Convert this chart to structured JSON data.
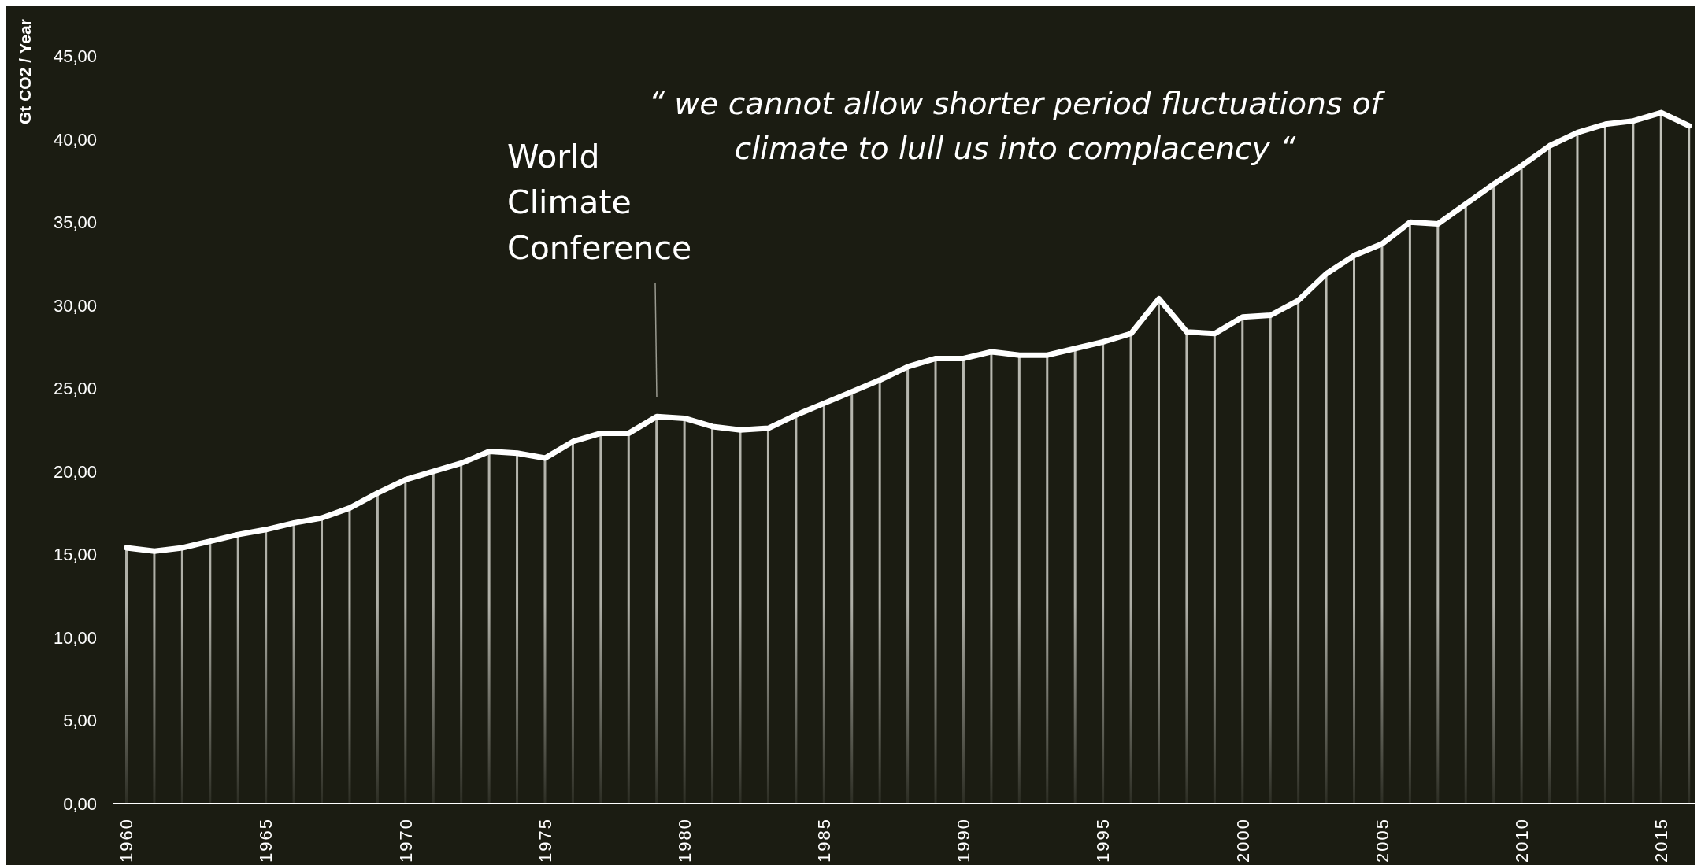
{
  "chart_data": {
    "type": "line",
    "ylabel": "Gt CO2 / Year",
    "x": [
      1960,
      1961,
      1962,
      1963,
      1964,
      1965,
      1966,
      1967,
      1968,
      1969,
      1970,
      1971,
      1972,
      1973,
      1974,
      1975,
      1976,
      1977,
      1978,
      1979,
      1980,
      1981,
      1982,
      1983,
      1984,
      1985,
      1986,
      1987,
      1988,
      1989,
      1990,
      1991,
      1992,
      1993,
      1994,
      1995,
      1996,
      1997,
      1998,
      1999,
      2000,
      2001,
      2002,
      2003,
      2004,
      2005,
      2006,
      2007,
      2008,
      2009,
      2010,
      2011,
      2012,
      2013,
      2014,
      2015,
      2016
    ],
    "series": [
      {
        "type": "bar",
        "color": "#c8c8c0",
        "values": [
          15.4,
          15.2,
          15.4,
          15.8,
          16.2,
          16.5,
          16.9,
          17.2,
          17.8,
          18.7,
          19.5,
          20.0,
          20.5,
          21.2,
          21.1,
          20.8,
          21.8,
          22.3,
          22.3,
          23.3,
          23.2,
          22.7,
          22.5,
          22.6,
          23.4,
          24.1,
          24.8,
          25.5,
          26.3,
          26.8,
          26.8,
          27.2,
          27.0,
          27.0,
          27.4,
          27.8,
          28.3,
          30.4,
          28.4,
          28.3,
          29.3,
          29.4,
          30.3,
          31.9,
          33.0,
          33.7,
          35.0,
          34.9,
          36.1,
          37.3,
          38.4,
          39.6,
          40.4,
          40.9,
          41.1,
          41.6,
          40.8
        ]
      },
      {
        "color": "#ffffff",
        "values": [
          15.4,
          15.2,
          15.4,
          15.8,
          16.2,
          16.5,
          16.9,
          17.2,
          17.8,
          18.7,
          19.5,
          20.0,
          20.5,
          21.2,
          21.1,
          20.8,
          21.8,
          22.3,
          22.3,
          23.3,
          23.2,
          22.7,
          22.5,
          22.6,
          23.4,
          24.1,
          24.8,
          25.5,
          26.3,
          26.8,
          26.8,
          27.2,
          27.0,
          27.0,
          27.4,
          27.8,
          28.3,
          30.4,
          28.4,
          28.3,
          29.3,
          29.4,
          30.3,
          31.9,
          33.0,
          33.7,
          35.0,
          34.9,
          36.1,
          37.3,
          38.4,
          39.6,
          40.4,
          40.9,
          41.1,
          41.6,
          40.8
        ]
      }
    ],
    "xlim": [
      1959.5,
      2016.2
    ],
    "xticks": [
      1960,
      1965,
      1970,
      1975,
      1980,
      1985,
      1990,
      1995,
      2000,
      2005,
      2010,
      2015
    ],
    "ylim": [
      0,
      48
    ],
    "yticks": [
      {
        "value": 0,
        "label": "0,00"
      },
      {
        "value": 5,
        "label": "5,00"
      },
      {
        "value": 10,
        "label": "10,00"
      },
      {
        "value": 15,
        "label": "15,00"
      },
      {
        "value": 20,
        "label": "20,00"
      },
      {
        "value": 25,
        "label": "25,00"
      },
      {
        "value": 30,
        "label": "30,00"
      },
      {
        "value": 35,
        "label": "35,00"
      },
      {
        "value": 40,
        "label": "40,00"
      },
      {
        "value": 45,
        "label": "45,00"
      }
    ],
    "annotations": [
      "World Climate Conference",
      "“ we cannot allow shorter period fluctuations of climate to lull us into complacency “"
    ],
    "grid": false,
    "legend": false,
    "marker": "none",
    "line_style": "solid"
  }
}
